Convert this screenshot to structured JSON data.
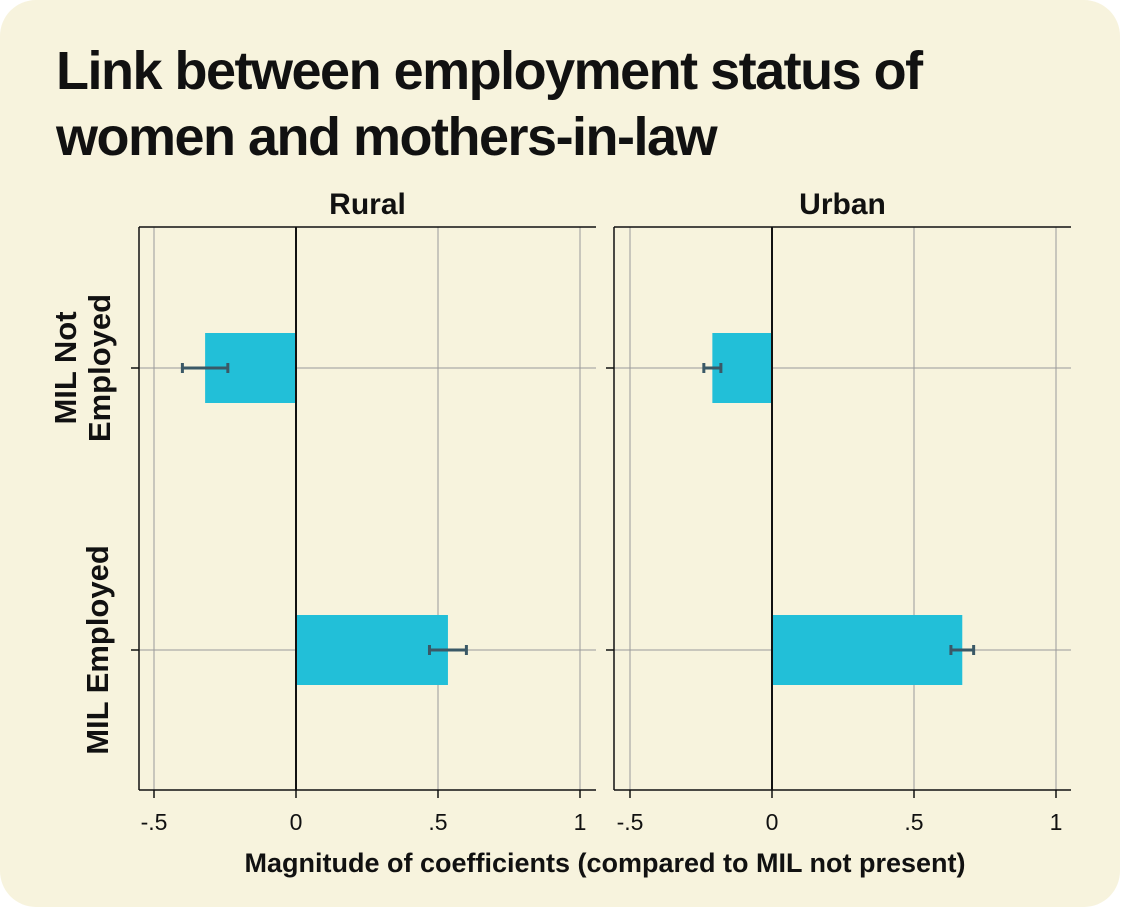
{
  "title": "Link between employment status of women and mothers-in-law",
  "chart_data": {
    "type": "bar",
    "orientation": "horizontal",
    "title": "Link between employment status of women and mothers-in-law",
    "xlabel": "Magnitude of coefficients (compared to MIL not present)",
    "categories": [
      {
        "line1": "MIL Not",
        "line2": "Employed"
      },
      {
        "line1": "MIL Employed",
        "line2": ""
      }
    ],
    "xlim": [
      -0.55,
      1.02
    ],
    "xticks": [
      -0.5,
      0,
      0.5,
      1
    ],
    "xtick_labels": [
      "-.5",
      "0",
      ".5",
      "1"
    ],
    "grid": true,
    "bar_color": "#22bfd8",
    "errorbar_color": "#3a5866",
    "panels": [
      {
        "name": "Rural",
        "values": [
          -0.32,
          0.535
        ],
        "ci": [
          [
            -0.4,
            -0.24
          ],
          [
            0.47,
            0.6
          ]
        ]
      },
      {
        "name": "Urban",
        "values": [
          -0.21,
          0.67
        ],
        "ci": [
          [
            -0.24,
            -0.18
          ],
          [
            0.63,
            0.71
          ]
        ]
      }
    ]
  }
}
